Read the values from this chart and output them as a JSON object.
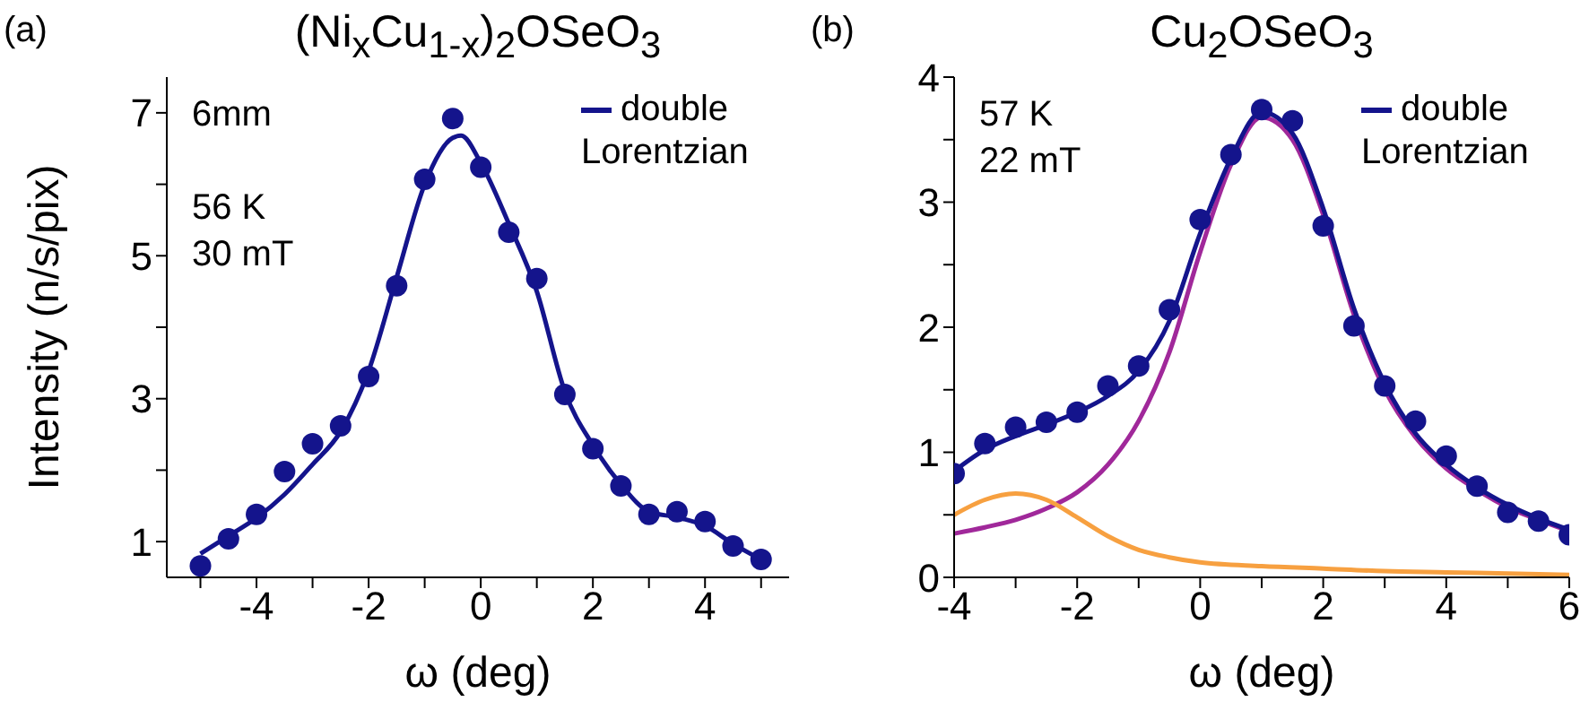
{
  "chart_data": [
    {
      "type": "line",
      "title": "(Ni$_{x}$Cu$_{1-x}$)$_{2}$OSeO$_{3}$",
      "xlabel": "ω (deg)",
      "ylabel": "Intensity (n/s/pix)",
      "annotations": [
        "(a)",
        "6mm",
        "56 K",
        "30 mT"
      ],
      "legend": "top right",
      "xlim": [
        -5.6,
        5.5
      ],
      "ylim": [
        0.5,
        7.5
      ],
      "xticks": [
        {
          "value": -5,
          "label": null
        },
        -4,
        {
          "value": -3,
          "label": null
        },
        -2,
        {
          "value": -1,
          "label": null
        },
        0,
        {
          "value": 1,
          "label": null
        },
        2,
        {
          "value": 3,
          "label": null
        },
        4,
        {
          "value": 5,
          "label": null
        }
      ],
      "yticks": [
        1,
        {
          "value": 2,
          "label": null
        },
        3,
        {
          "value": 4,
          "label": null
        },
        5,
        {
          "value": 6,
          "label": null
        },
        7
      ],
      "series": [
        {
          "type": "scatter",
          "marker": "circle",
          "color": "#14148c",
          "x": [
            -5,
            -4.5,
            -4,
            -3.5,
            -3,
            -2.5,
            -2,
            -1.5,
            -1,
            -0.5,
            0,
            0.5,
            1,
            1.5,
            2,
            2.5,
            3,
            3.5,
            4,
            4.5,
            5
          ],
          "values": [
            0.66,
            1.04,
            1.38,
            1.98,
            2.37,
            2.62,
            3.31,
            4.58,
            6.07,
            6.92,
            6.24,
            5.33,
            4.68,
            3.06,
            2.3,
            1.78,
            1.38,
            1.42,
            1.28,
            0.94,
            0.75
          ]
        },
        {
          "name": "double Lorentzian",
          "color": "#14148c",
          "x": [
            -5,
            -4.5,
            -4,
            -3.5,
            -3,
            -2.5,
            -2,
            -1.5,
            -1,
            -0.5,
            -0.35,
            0,
            0.5,
            1,
            1.5,
            2,
            2.5,
            3,
            3.5,
            4,
            4.5,
            5
          ],
          "values": [
            0.83,
            1.08,
            1.33,
            1.66,
            2.08,
            2.54,
            3.39,
            4.7,
            6.0,
            6.65,
            6.68,
            6.3,
            5.45,
            4.5,
            3.1,
            2.35,
            1.8,
            1.42,
            1.34,
            1.22,
            0.97,
            0.75
          ]
        }
      ]
    },
    {
      "type": "line",
      "title": "Cu$_{2}$OSeO$_{3}$",
      "xlabel": "ω (deg)",
      "annotations": [
        "(b)",
        "57 K",
        "22 mT"
      ],
      "legend": "top right",
      "xlim": [
        -4,
        6
      ],
      "ylim": [
        0,
        4
      ],
      "xticks": [
        -4,
        {
          "value": -3,
          "label": null
        },
        -2,
        {
          "value": -1,
          "label": null
        },
        0,
        {
          "value": 1,
          "label": null
        },
        2,
        {
          "value": 3,
          "label": null
        },
        4,
        {
          "value": 5,
          "label": null
        },
        6
      ],
      "yticks": [
        0,
        {
          "value": 0.5,
          "label": null
        },
        1,
        {
          "value": 1.5,
          "label": null
        },
        2,
        {
          "value": 2.5,
          "label": null
        },
        3,
        {
          "value": 3.5,
          "label": null
        },
        4
      ],
      "series": [
        {
          "color": "#a0289a",
          "x": [
            -4,
            -3.5,
            -3,
            -2.5,
            -2,
            -1.5,
            -1,
            -0.5,
            0,
            0.5,
            1,
            1.5,
            2,
            2.5,
            3,
            3.5,
            4,
            4.5,
            5,
            5.5,
            6
          ],
          "values": [
            0.35,
            0.4,
            0.46,
            0.55,
            0.68,
            0.9,
            1.25,
            1.8,
            2.6,
            3.3,
            3.68,
            3.5,
            2.9,
            2.1,
            1.5,
            1.12,
            0.87,
            0.7,
            0.56,
            0.46,
            0.37
          ]
        },
        {
          "color": "#f7a040",
          "x": [
            -4,
            -3.5,
            -3,
            -2.5,
            -2,
            -1.5,
            -1,
            -0.5,
            0,
            1,
            2,
            3,
            4,
            5,
            6
          ],
          "values": [
            0.5,
            0.62,
            0.67,
            0.62,
            0.48,
            0.33,
            0.22,
            0.16,
            0.12,
            0.09,
            0.07,
            0.05,
            0.04,
            0.03,
            0.02
          ]
        },
        {
          "type": "scatter",
          "marker": "circle",
          "color": "#14148c",
          "x": [
            -4,
            -3.5,
            -3,
            -2.5,
            -2,
            -1.5,
            -1,
            -0.5,
            0,
            0.5,
            1,
            1.5,
            2,
            2.5,
            3,
            3.5,
            4,
            4.5,
            5,
            5.5,
            6
          ],
          "values": [
            0.83,
            1.07,
            1.2,
            1.24,
            1.32,
            1.53,
            1.69,
            2.14,
            2.86,
            3.38,
            3.74,
            3.65,
            2.81,
            2.01,
            1.53,
            1.25,
            0.97,
            0.73,
            0.52,
            0.45,
            0.34
          ]
        },
        {
          "name": "double Lorentzian",
          "color": "#14148c",
          "x": [
            -4,
            -3.5,
            -3,
            -2.5,
            -2,
            -1.5,
            -1,
            -0.5,
            0,
            0.5,
            1,
            1.5,
            2,
            2.5,
            3,
            3.5,
            4,
            4.5,
            5,
            5.5,
            6
          ],
          "values": [
            0.85,
            1.02,
            1.13,
            1.22,
            1.32,
            1.45,
            1.65,
            2.05,
            2.75,
            3.35,
            3.72,
            3.55,
            2.95,
            2.15,
            1.55,
            1.15,
            0.9,
            0.72,
            0.58,
            0.47,
            0.38
          ]
        }
      ]
    }
  ]
}
